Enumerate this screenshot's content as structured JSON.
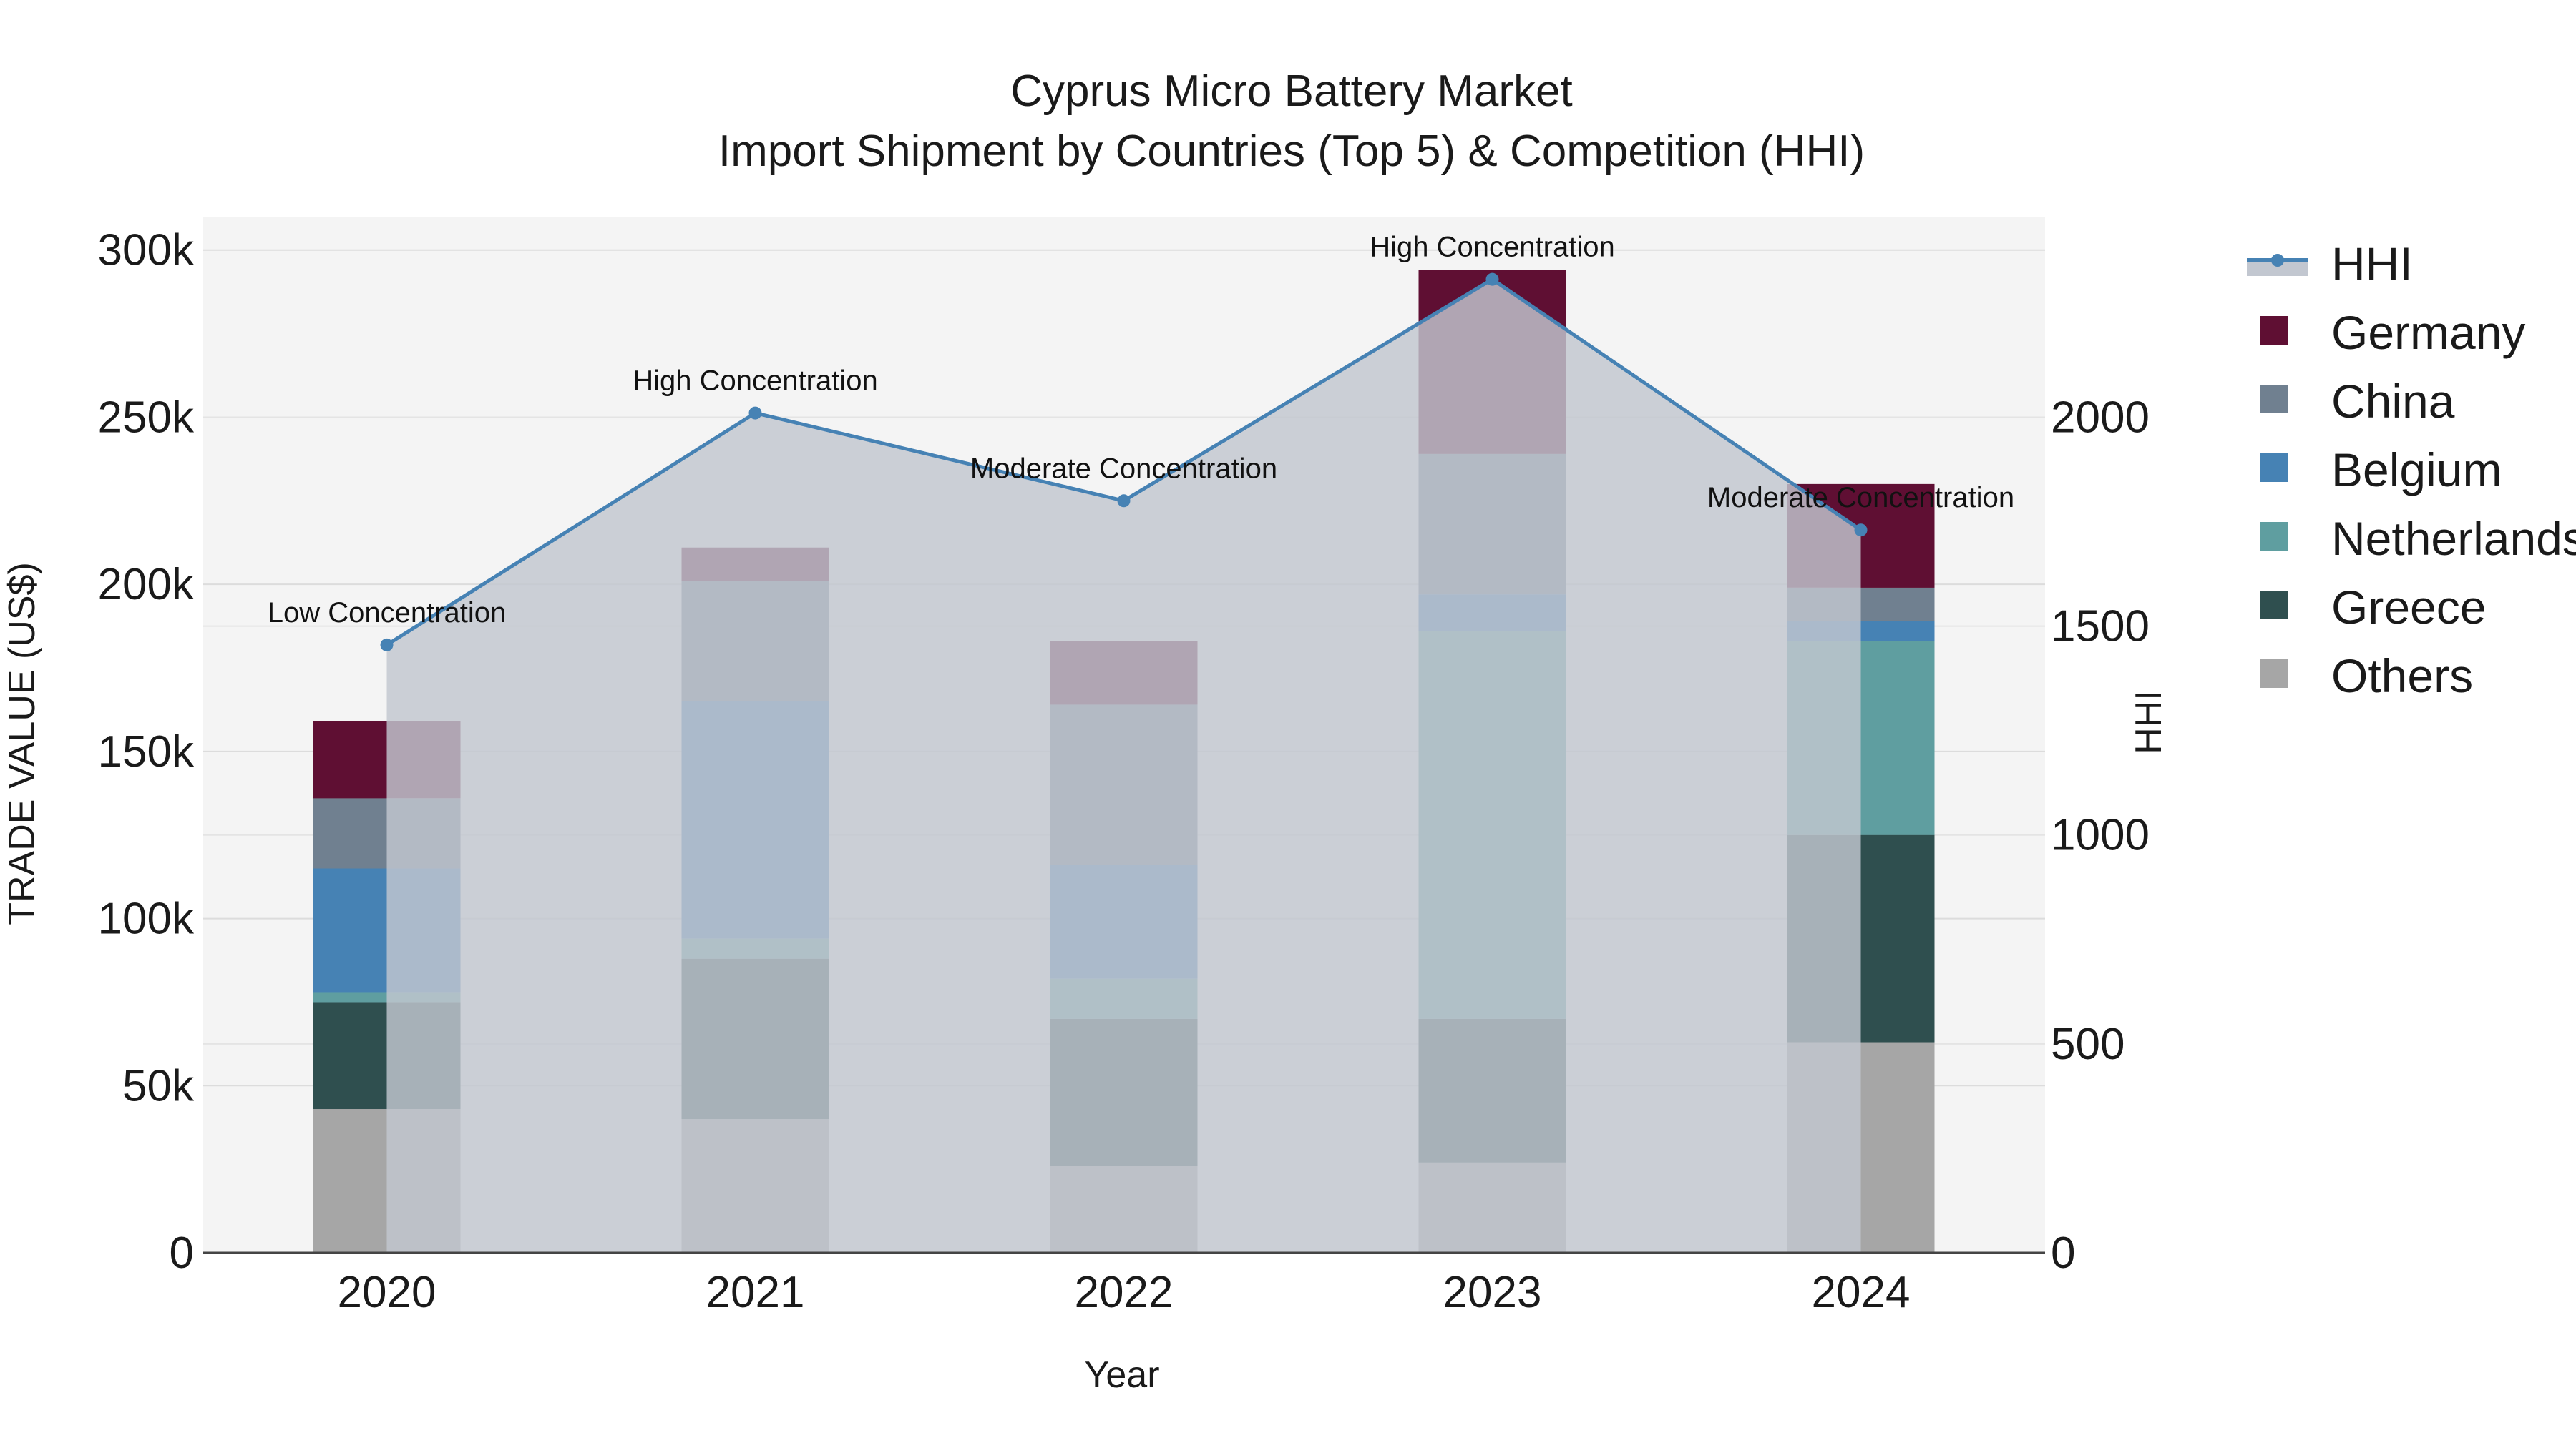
{
  "chart_data": {
    "type": "bar",
    "title": "Cyprus Micro Battery Market",
    "subtitle": "Import Shipment by Countries (Top 5) & Competition (HHI)",
    "xlabel": "Year",
    "ylabel": "TRADE VALUE (US$)",
    "y2label": "HHI",
    "categories": [
      "2020",
      "2021",
      "2022",
      "2023",
      "2024"
    ],
    "ylim": [
      0,
      310000
    ],
    "y2lim": [
      0,
      2480
    ],
    "yticks": [
      0,
      50000,
      100000,
      150000,
      200000,
      250000,
      300000
    ],
    "ytick_labels": [
      "0",
      "50k",
      "100k",
      "150k",
      "200k",
      "250k",
      "300k"
    ],
    "y2ticks": [
      0,
      500,
      1000,
      1500,
      2000
    ],
    "y2tick_labels": [
      "0",
      "500",
      "1000",
      "1500",
      "2000"
    ],
    "series": [
      {
        "name": "Others",
        "color": "#a6a6a6",
        "values": [
          43000,
          40000,
          26000,
          27000,
          63000
        ]
      },
      {
        "name": "Greece",
        "color": "#2f4f4f",
        "values": [
          32000,
          48000,
          44000,
          43000,
          62000
        ]
      },
      {
        "name": "Netherlands",
        "color": "#5f9ea0",
        "values": [
          3000,
          6000,
          12000,
          116000,
          58000
        ]
      },
      {
        "name": "Belgium",
        "color": "#4682b4",
        "values": [
          37000,
          71000,
          34000,
          11000,
          6000
        ]
      },
      {
        "name": "China",
        "color": "#708090",
        "values": [
          21000,
          36000,
          48000,
          42000,
          10000
        ]
      },
      {
        "name": "Germany",
        "color": "#5f0f33",
        "values": [
          23000,
          10000,
          19000,
          55000,
          31000
        ]
      }
    ],
    "hhi": {
      "name": "HHI",
      "color": "#4682b4",
      "values": [
        1455,
        2010,
        1800,
        2330,
        1730
      ],
      "labels": [
        "Low Concentration",
        "High Concentration",
        "Moderate Concentration",
        "High Concentration",
        "Moderate Concentration"
      ]
    },
    "legend": [
      "HHI",
      "Germany",
      "China",
      "Belgium",
      "Netherlands",
      "Greece",
      "Others"
    ]
  }
}
